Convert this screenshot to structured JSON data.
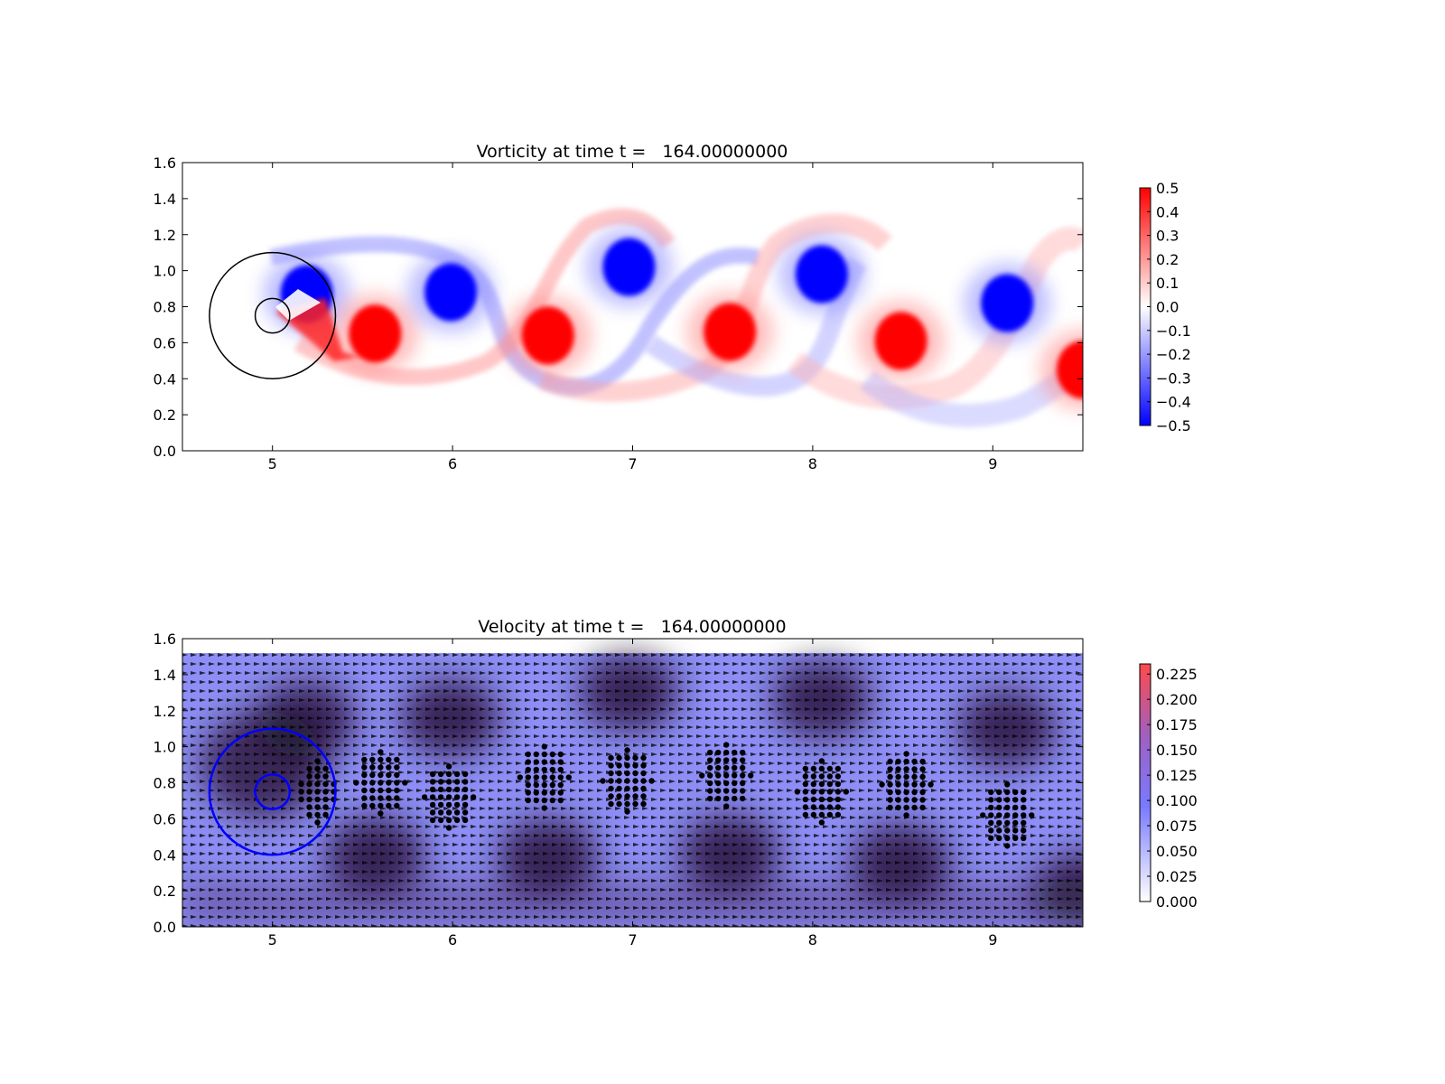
{
  "chart_data": [
    {
      "type": "heatmap",
      "title": "Vorticity at time t =   164.00000000",
      "xlim": [
        4.5,
        9.5
      ],
      "ylim": [
        0.0,
        1.6
      ],
      "xticks": [
        "5",
        "6",
        "7",
        "8",
        "9"
      ],
      "yticks": [
        "0.0",
        "0.2",
        "0.4",
        "0.6",
        "0.8",
        "1.0",
        "1.2",
        "1.4",
        "1.6"
      ],
      "colorbar": {
        "range": [
          -0.5,
          0.5
        ],
        "ticks": [
          "0.5",
          "0.4",
          "0.3",
          "0.2",
          "0.1",
          "0.0",
          "−0.1",
          "−0.2",
          "−0.3",
          "−0.4",
          "−0.5"
        ],
        "colors": [
          "#0000ff",
          "#ffffff",
          "#ff0000"
        ]
      },
      "vortices": [
        {
          "x": 5.19,
          "y": 0.87,
          "sign": "negative"
        },
        {
          "x": 5.57,
          "y": 0.65,
          "sign": "positive"
        },
        {
          "x": 5.99,
          "y": 0.88,
          "sign": "negative"
        },
        {
          "x": 6.53,
          "y": 0.64,
          "sign": "positive"
        },
        {
          "x": 6.98,
          "y": 1.02,
          "sign": "negative"
        },
        {
          "x": 7.54,
          "y": 0.66,
          "sign": "positive"
        },
        {
          "x": 8.05,
          "y": 0.98,
          "sign": "negative"
        },
        {
          "x": 8.49,
          "y": 0.61,
          "sign": "positive"
        },
        {
          "x": 9.08,
          "y": 0.82,
          "sign": "negative"
        },
        {
          "x": 9.5,
          "y": 0.45,
          "sign": "positive"
        }
      ],
      "cylinder": {
        "x": 5.0,
        "y": 0.75,
        "r_inner": 0.06,
        "r_outer": 0.35
      }
    },
    {
      "type": "heatmap",
      "title": "Velocity at time t =   164.00000000",
      "xlim": [
        4.5,
        9.5
      ],
      "ylim": [
        0.0,
        1.6
      ],
      "xticks": [
        "5",
        "6",
        "7",
        "8",
        "9"
      ],
      "yticks": [
        "0.0",
        "0.2",
        "0.4",
        "0.6",
        "0.8",
        "1.0",
        "1.2",
        "1.4",
        "1.6"
      ],
      "colorbar": {
        "range": [
          0.0,
          0.235
        ],
        "ticks": [
          "0.225",
          "0.200",
          "0.175",
          "0.150",
          "0.125",
          "0.100",
          "0.075",
          "0.050",
          "0.025",
          "0.000"
        ],
        "colors": [
          "#ffffff",
          "#7a7aff",
          "#a060c0",
          "#ff4a4a"
        ]
      },
      "field_top": 1.52,
      "cylinder": {
        "x": 5.0,
        "y": 0.75,
        "r_inner": 0.06,
        "r_outer": 0.35,
        "color": "#0000ff"
      }
    }
  ]
}
